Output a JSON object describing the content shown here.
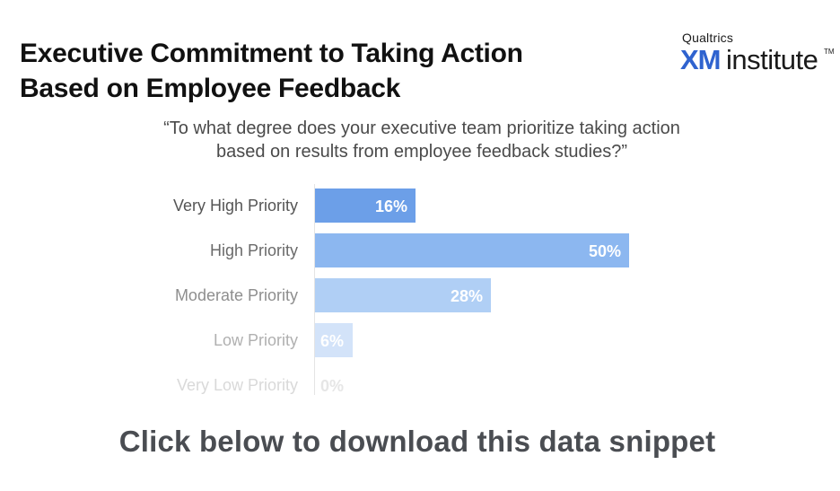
{
  "header": {
    "title_line1": "Executive Commitment to Taking Action",
    "title_line2": "Based on Employee Feedback"
  },
  "logo": {
    "brand": "Qualtrics",
    "xm": "XM",
    "institute": "institute",
    "tm": "TM"
  },
  "question": {
    "line1": "“To what degree does your executive team prioritize taking action",
    "line2": "based on results from employee feedback studies?”"
  },
  "chart_data": {
    "type": "bar",
    "orientation": "horizontal",
    "categories": [
      "Very High Priority",
      "High Priority",
      "Moderate Priority",
      "Low Priority",
      "Very Low Priority"
    ],
    "values": [
      16,
      50,
      28,
      6,
      0
    ],
    "value_labels": [
      "16%",
      "50%",
      "28%",
      "6%",
      "0%"
    ],
    "xlim": [
      0,
      50
    ],
    "bar_colors": [
      "#6c9fe8",
      "#8cb7f0",
      "#b0cff5",
      "#d3e3f9",
      "#f1f6fd"
    ],
    "label_colors": [
      "#555555",
      "#6a6a6a",
      "#8e8e8e",
      "#b0b0b0",
      "#d9d9d9"
    ],
    "value_text_colors": [
      "#ffffff",
      "#ffffff",
      "#ffffff",
      "#ffffff",
      "#e6e6e6"
    ],
    "grid": false
  },
  "footer": {
    "cta": "Click below to download this data snippet"
  }
}
